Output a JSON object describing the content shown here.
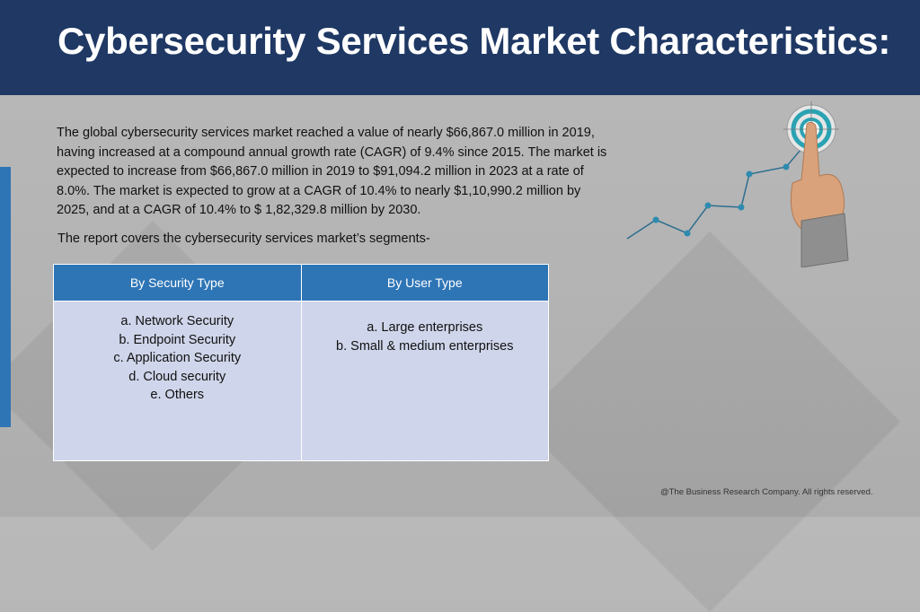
{
  "header": {
    "title": "Cybersecurity Services Market Characteristics:"
  },
  "content": {
    "paragraph": "The global cybersecurity services market reached a value of nearly $66,867.0 million in 2019, having increased at a compound annual growth rate (CAGR) of 9.4% since 2015. The market is expected to increase from $66,867.0 million in 2019 to $91,094.2 million in 2023 at a rate of 8.0%. The market is expected to grow at a CAGR of 10.4% to nearly $1,10,990.2 million by 2025, and at a CAGR of 10.4% to $ 1,82,329.8 million by 2030.",
    "segments_intro": "The report covers the cybersecurity services market’s segments-"
  },
  "segments_table": {
    "headers": [
      "By Security Type",
      "By User Type"
    ],
    "security_types": [
      "a. Network Security",
      "b. Endpoint Security",
      "c. Application Security",
      "d. Cloud security",
      "e. Others"
    ],
    "user_types": [
      "a. Large enterprises",
      "b. Small & medium enterprises"
    ]
  },
  "footer": {
    "copyright": "@The Business Research Company. All rights reserved."
  },
  "colors": {
    "header_bg": "#1f3864",
    "accent": "#2e75b6",
    "table_header": "#2e75b6",
    "table_body": "#cfd5ea"
  },
  "icons": [
    "target-icon",
    "pointing-hand-icon",
    "growth-line-icon"
  ]
}
